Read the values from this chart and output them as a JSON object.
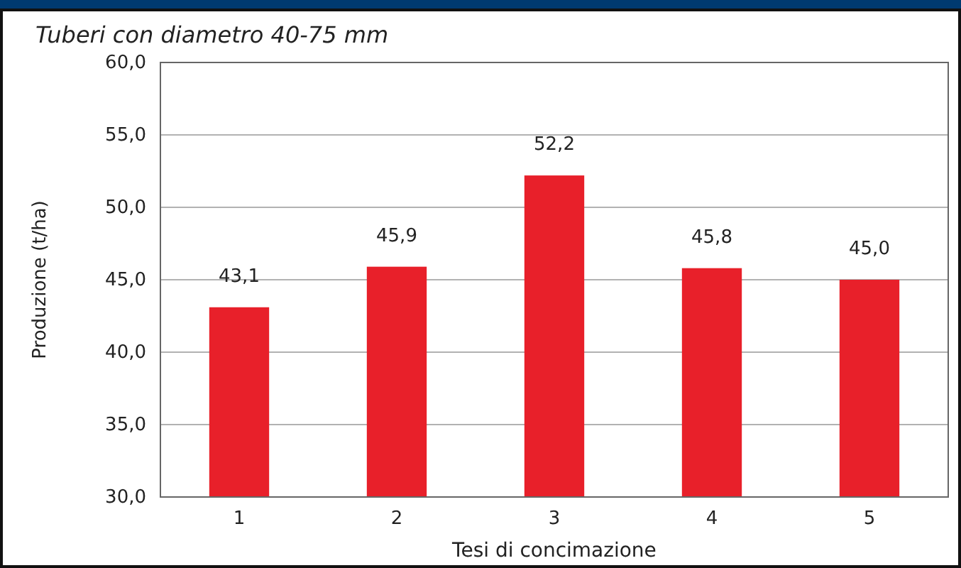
{
  "chart_data": {
    "type": "bar",
    "title": "Tuberi con diametro 40-75 mm",
    "xlabel": "Tesi di concimazione",
    "ylabel": "Produzione (t/ha)",
    "categories": [
      "1",
      "2",
      "3",
      "4",
      "5"
    ],
    "values": [
      43.1,
      45.9,
      52.2,
      45.8,
      45.0
    ],
    "value_labels": [
      "43,1",
      "45,9",
      "52,2",
      "45,8",
      "45,0"
    ],
    "color": "#e8202a",
    "ylim": [
      30,
      60
    ],
    "yticks": [
      {
        "value": 30,
        "label": "30,0"
      },
      {
        "value": 35,
        "label": "35,0"
      },
      {
        "value": 40,
        "label": "40,0"
      },
      {
        "value": 45,
        "label": "45,0"
      },
      {
        "value": 50,
        "label": "50,0"
      },
      {
        "value": 55,
        "label": "55,0"
      },
      {
        "value": 60,
        "label": "60,0"
      }
    ],
    "grid": "y"
  }
}
